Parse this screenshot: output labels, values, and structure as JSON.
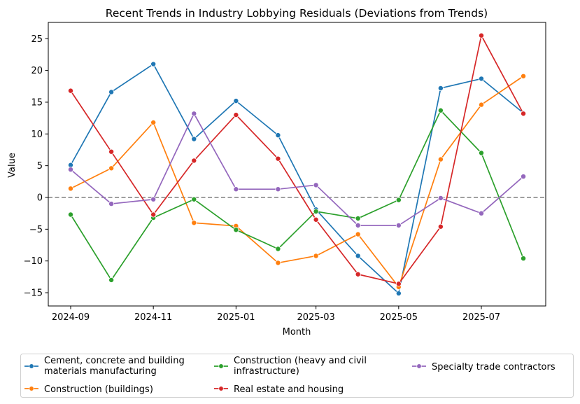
{
  "chart_data": {
    "type": "line",
    "title": "Recent Trends in Industry Lobbying Residuals (Deviations from Trends)",
    "xlabel": "Month",
    "ylabel": "Value",
    "x": [
      "2024-09",
      "2024-10",
      "2024-11",
      "2024-12",
      "2025-01",
      "2025-02",
      "2025-03",
      "2025-04",
      "2025-05",
      "2025-06",
      "2025-07",
      "2025-08"
    ],
    "x_tick_labels": [
      "2024-09",
      "2024-11",
      "2025-01",
      "2025-03",
      "2025-05",
      "2025-07"
    ],
    "y_ticks": [
      -15,
      -10,
      -5,
      0,
      5,
      10,
      15,
      20,
      25
    ],
    "ylim": [
      -17.1,
      27.5
    ],
    "grid": false,
    "reference_line": {
      "y": 0,
      "style": "dashed",
      "color": "#808080"
    },
    "legend_position": "below plot, 3 columns",
    "series": [
      {
        "name": "Cement, concrete and building materials manufacturing",
        "legend_lines": [
          "Cement, concrete and building",
          "materials manufacturing"
        ],
        "color": "#1f77b4",
        "values": [
          5.1,
          16.6,
          21.0,
          9.2,
          15.2,
          9.8,
          -1.9,
          -9.2,
          -15.1,
          17.2,
          18.7,
          13.3
        ]
      },
      {
        "name": "Construction (buildings)",
        "legend_lines": [
          "Construction (buildings)"
        ],
        "color": "#ff7f0e",
        "values": [
          1.4,
          4.6,
          11.8,
          -4.0,
          -4.5,
          -10.3,
          -9.2,
          -5.8,
          -14.1,
          6.0,
          14.6,
          19.1
        ]
      },
      {
        "name": "Construction (heavy and civil infrastructure)",
        "legend_lines": [
          "Construction (heavy and civil",
          "infrastructure)"
        ],
        "color": "#2ca02c",
        "values": [
          -2.7,
          -13.0,
          -3.2,
          -0.3,
          -5.1,
          -8.1,
          -2.2,
          -3.3,
          -0.4,
          13.7,
          7.0,
          -9.6
        ]
      },
      {
        "name": "Real estate and housing",
        "legend_lines": [
          "Real estate and housing"
        ],
        "color": "#d62728",
        "values": [
          16.8,
          7.2,
          -2.7,
          5.8,
          13.0,
          6.1,
          -3.5,
          -12.1,
          -13.6,
          -4.6,
          25.5,
          13.2
        ]
      },
      {
        "name": "Specialty trade contractors",
        "legend_lines": [
          "Specialty trade contractors"
        ],
        "color": "#9467bd",
        "values": [
          4.4,
          -1.0,
          -0.3,
          13.2,
          1.3,
          1.3,
          1.95,
          -4.4,
          -4.4,
          -0.1,
          -2.5,
          3.3
        ]
      }
    ]
  }
}
